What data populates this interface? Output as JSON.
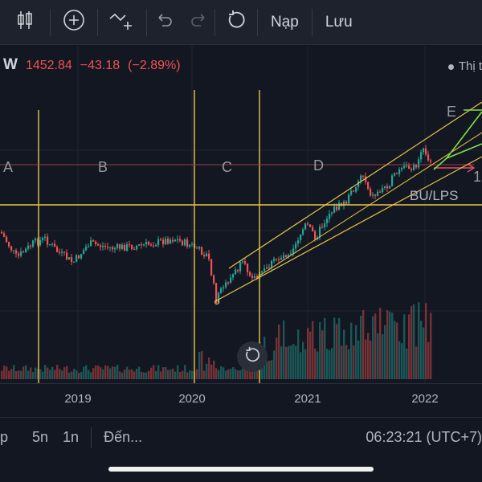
{
  "toolbar": {
    "items": [
      {
        "icon": "candles-icon"
      },
      {
        "icon": "plus-circle-icon"
      },
      {
        "icon": "indicator-add-icon"
      },
      {
        "icon": "undo-icon"
      },
      {
        "icon": "redo-icon"
      },
      {
        "icon": "refresh-icon"
      }
    ],
    "load_label": "Nạp",
    "save_label": "Lưu"
  },
  "legend": {
    "symbol": "W",
    "price": "1452.84",
    "change": "−43.18",
    "change_pct": "(−2.89%)",
    "status_label": "Thị t",
    "price_color": "#f05350"
  },
  "wave_labels": {
    "a": "A",
    "b": "B",
    "c": "C",
    "d": "D",
    "e": "E",
    "bu_lps": "BU/LPS",
    "right_cut": "1"
  },
  "time_axis": {
    "ticks": [
      "2019",
      "2020",
      "2021",
      "2022"
    ]
  },
  "bottom_bar": {
    "interval_p": "p",
    "interval_5n": "5n",
    "interval_1n": "1n",
    "date_range": "Đến...",
    "clock": "06:23:21 (UTC+7)"
  },
  "colors": {
    "up": "#26a69a",
    "down": "#ef5350",
    "drawing": "#e8c547",
    "green_drawing": "#7ee04a"
  }
}
